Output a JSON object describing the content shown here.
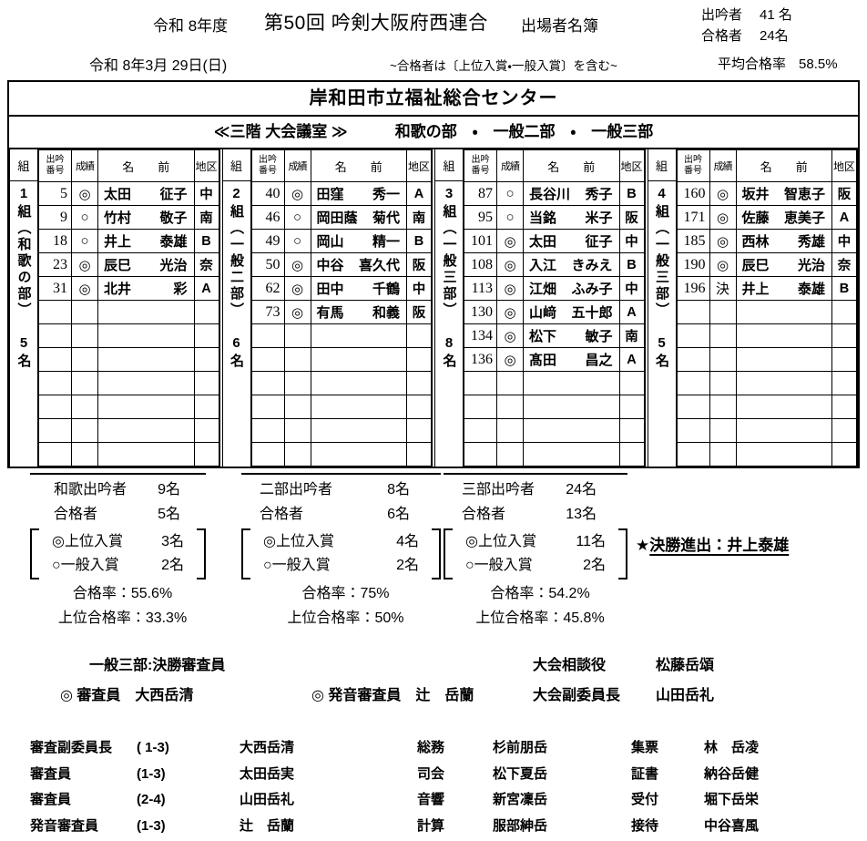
{
  "header": {
    "era": "令和 8年度",
    "title": "第50回 吟剣大阪府西連合",
    "subtitle": "出場者名簿",
    "stat1_label": "出吟者",
    "stat1_value": "41 名",
    "stat2_label": "合格者",
    "stat2_value": "24名",
    "date": "令和 8年3月 29日(日)",
    "note": "~合格者は〔上位入賞・一般入賞〕を含む~",
    "avg_label": "平均合格率",
    "avg_value": "58.5%"
  },
  "table": {
    "venue": "岸和田市立福祉総合センター",
    "room": "≪三階 大会議室 ≫",
    "sections": "和歌の部　・　一般二部　・　一般三部",
    "col_group": "組",
    "col_number_top": "出吟",
    "col_number_bottom": "番号",
    "col_result": "成績",
    "col_name": "名　　前",
    "col_district": "地区",
    "rows_per_group": 12,
    "groups": [
      {
        "label": "1組（和歌の部）",
        "count": "5名",
        "entries": [
          {
            "no": "5",
            "mark": "◎",
            "name": "太田 征子",
            "district": "中"
          },
          {
            "no": "9",
            "mark": "○",
            "name": "竹村 敬子",
            "district": "南"
          },
          {
            "no": "18",
            "mark": "○",
            "name": "井上 泰雄",
            "district": "B"
          },
          {
            "no": "23",
            "mark": "◎",
            "name": "辰巳 光治",
            "district": "奈"
          },
          {
            "no": "31",
            "mark": "◎",
            "name": "北井 彩",
            "district": "A"
          }
        ]
      },
      {
        "label": "2組（一般二部）",
        "count": "6名",
        "entries": [
          {
            "no": "40",
            "mark": "◎",
            "name": "田窪 秀一",
            "district": "A"
          },
          {
            "no": "46",
            "mark": "○",
            "name": "岡田蔭 菊代",
            "district": "南"
          },
          {
            "no": "49",
            "mark": "○",
            "name": "岡山 精一",
            "district": "B"
          },
          {
            "no": "50",
            "mark": "◎",
            "name": "中谷 喜久代",
            "district": "阪"
          },
          {
            "no": "62",
            "mark": "◎",
            "name": "田中 千鶴",
            "district": "中"
          },
          {
            "no": "73",
            "mark": "◎",
            "name": "有馬 和義",
            "district": "阪"
          }
        ]
      },
      {
        "label": "3組（一般三部）",
        "count": "8名",
        "entries": [
          {
            "no": "87",
            "mark": "○",
            "name": "長谷川 秀子",
            "district": "B"
          },
          {
            "no": "95",
            "mark": "○",
            "name": "当銘 米子",
            "district": "阪"
          },
          {
            "no": "101",
            "mark": "◎",
            "name": "太田 征子",
            "district": "中"
          },
          {
            "no": "108",
            "mark": "◎",
            "name": "入江 きみえ",
            "district": "B"
          },
          {
            "no": "113",
            "mark": "◎",
            "name": "江畑 ふみ子",
            "district": "中"
          },
          {
            "no": "130",
            "mark": "◎",
            "name": "山﨑 五十郎",
            "district": "A"
          },
          {
            "no": "134",
            "mark": "◎",
            "name": "松下 敏子",
            "district": "南"
          },
          {
            "no": "136",
            "mark": "◎",
            "name": "髙田 昌之",
            "district": "A"
          }
        ]
      },
      {
        "label": "4組（一般三部）",
        "count": "5名",
        "entries": [
          {
            "no": "160",
            "mark": "◎",
            "name": "坂井 智恵子",
            "district": "阪"
          },
          {
            "no": "171",
            "mark": "◎",
            "name": "佐藤 恵美子",
            "district": "A"
          },
          {
            "no": "185",
            "mark": "◎",
            "name": "西林 秀雄",
            "district": "中"
          },
          {
            "no": "190",
            "mark": "◎",
            "name": "辰巳 光治",
            "district": "奈"
          },
          {
            "no": "196",
            "mark": "決",
            "name": "井上 泰雄",
            "district": "B"
          }
        ]
      }
    ]
  },
  "summaries": [
    {
      "participants_label": "和歌出吟者",
      "participants": "9名",
      "passed_label": "合格者",
      "passed": "5名",
      "top_label": "◎上位入賞",
      "top": "3名",
      "general_label": "○一般入賞",
      "general": "2名",
      "rate": "合格率：55.6%",
      "top_rate": "上位合格率：33.3%"
    },
    {
      "participants_label": "二部出吟者",
      "participants": "8名",
      "passed_label": "合格者",
      "passed": "6名",
      "top_label": "◎上位入賞",
      "top": "4名",
      "general_label": "○一般入賞",
      "general": "2名",
      "rate": "合格率：75%",
      "top_rate": "上位合格率：50%"
    },
    {
      "participants_label": "三部出吟者",
      "participants": "24名",
      "passed_label": "合格者",
      "passed": "13名",
      "top_label": "◎上位入賞",
      "top": "11名",
      "general_label": "○一般入賞",
      "general": "2名",
      "rate": "合格率：54.2%",
      "top_rate": "上位合格率：45.8%"
    }
  ],
  "final_star": "★",
  "final_text": "決勝進出：井上泰雄",
  "officials_mid": {
    "heading": "一般三部:決勝審査員",
    "judge": "◎ 審査員　大西岳清",
    "pronunciation_judge": "◎ 発音審査員　辻　岳蘭",
    "advisor_label": "大会相談役",
    "advisor_name": "松藤岳頌",
    "vice_chair_label": "大会副委員長",
    "vice_chair_name": "山田岳礼"
  },
  "officials_bottom": [
    {
      "role": "審査副委員長",
      "range": "( 1-3)",
      "name": "大西岳清",
      "role2": "総務",
      "name2": "杉前朋岳",
      "role3": "集票",
      "name3": "林　岳凌"
    },
    {
      "role": "審査員",
      "range": "(1-3)",
      "name": "太田岳実",
      "role2": "司会",
      "name2": "松下夏岳",
      "role3": "証書",
      "name3": "納谷岳健"
    },
    {
      "role": "審査員",
      "range": "(2-4)",
      "name": "山田岳礼",
      "role2": "音響",
      "name2": "新宮凜岳",
      "role3": "受付",
      "name3": "堀下岳栄"
    },
    {
      "role": "発音審査員",
      "range": "(1-3)",
      "name": "辻　岳蘭",
      "role2": "計算",
      "name2": "服部紳岳",
      "role3": "接待",
      "name3": "中谷喜風"
    }
  ]
}
